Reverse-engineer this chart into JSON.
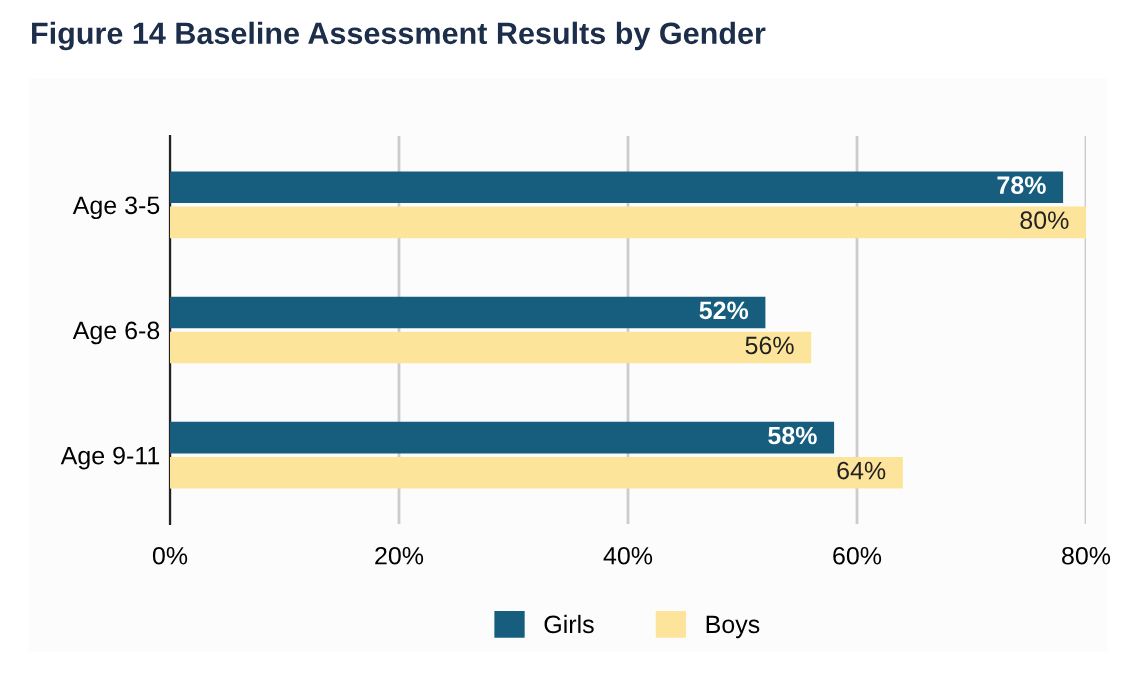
{
  "chart_data": {
    "type": "bar",
    "orientation": "horizontal",
    "title": "Figure 14 Baseline Assessment Results by Gender",
    "categories": [
      "Age 3-5",
      "Age 6-8",
      "Age 9-11"
    ],
    "series": [
      {
        "name": "Girls",
        "color": "#175e7e",
        "values": [
          78,
          52,
          58
        ]
      },
      {
        "name": "Boys",
        "color": "#fde49b",
        "values": [
          80,
          56,
          64
        ]
      }
    ],
    "xlim": [
      0,
      80
    ],
    "xticks": [
      {
        "value": 0,
        "label": "0%"
      },
      {
        "value": 20,
        "label": "20%"
      },
      {
        "value": 40,
        "label": "40%"
      },
      {
        "value": 60,
        "label": "60%"
      },
      {
        "value": 80,
        "label": "80%"
      }
    ],
    "grid": "x",
    "legend": "bottom",
    "value_labels": [
      [
        "78%",
        "52%",
        "58%"
      ],
      [
        "80%",
        "56%",
        "64%"
      ]
    ]
  }
}
